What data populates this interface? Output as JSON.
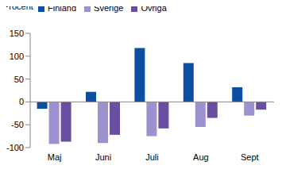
{
  "chart_data": {
    "type": "bar",
    "y_label": "Procent",
    "categories": [
      "Maj",
      "Juni",
      "Juli",
      "Aug",
      "Sept"
    ],
    "series": [
      {
        "name": "Finland",
        "color": "#0b4ea2",
        "values": [
          -15,
          22,
          118,
          85,
          32
        ]
      },
      {
        "name": "Sverige",
        "color": "#9d92cf",
        "values": [
          -92,
          -90,
          -75,
          -55,
          -30
        ]
      },
      {
        "name": "Övriga",
        "color": "#6a4ea2",
        "values": [
          -87,
          -72,
          -58,
          -35,
          -17
        ]
      }
    ],
    "ylim": [
      -100,
      150
    ],
    "yticks": [
      -100,
      -50,
      0,
      50,
      100,
      150
    ],
    "grid": false,
    "legend": "top"
  }
}
